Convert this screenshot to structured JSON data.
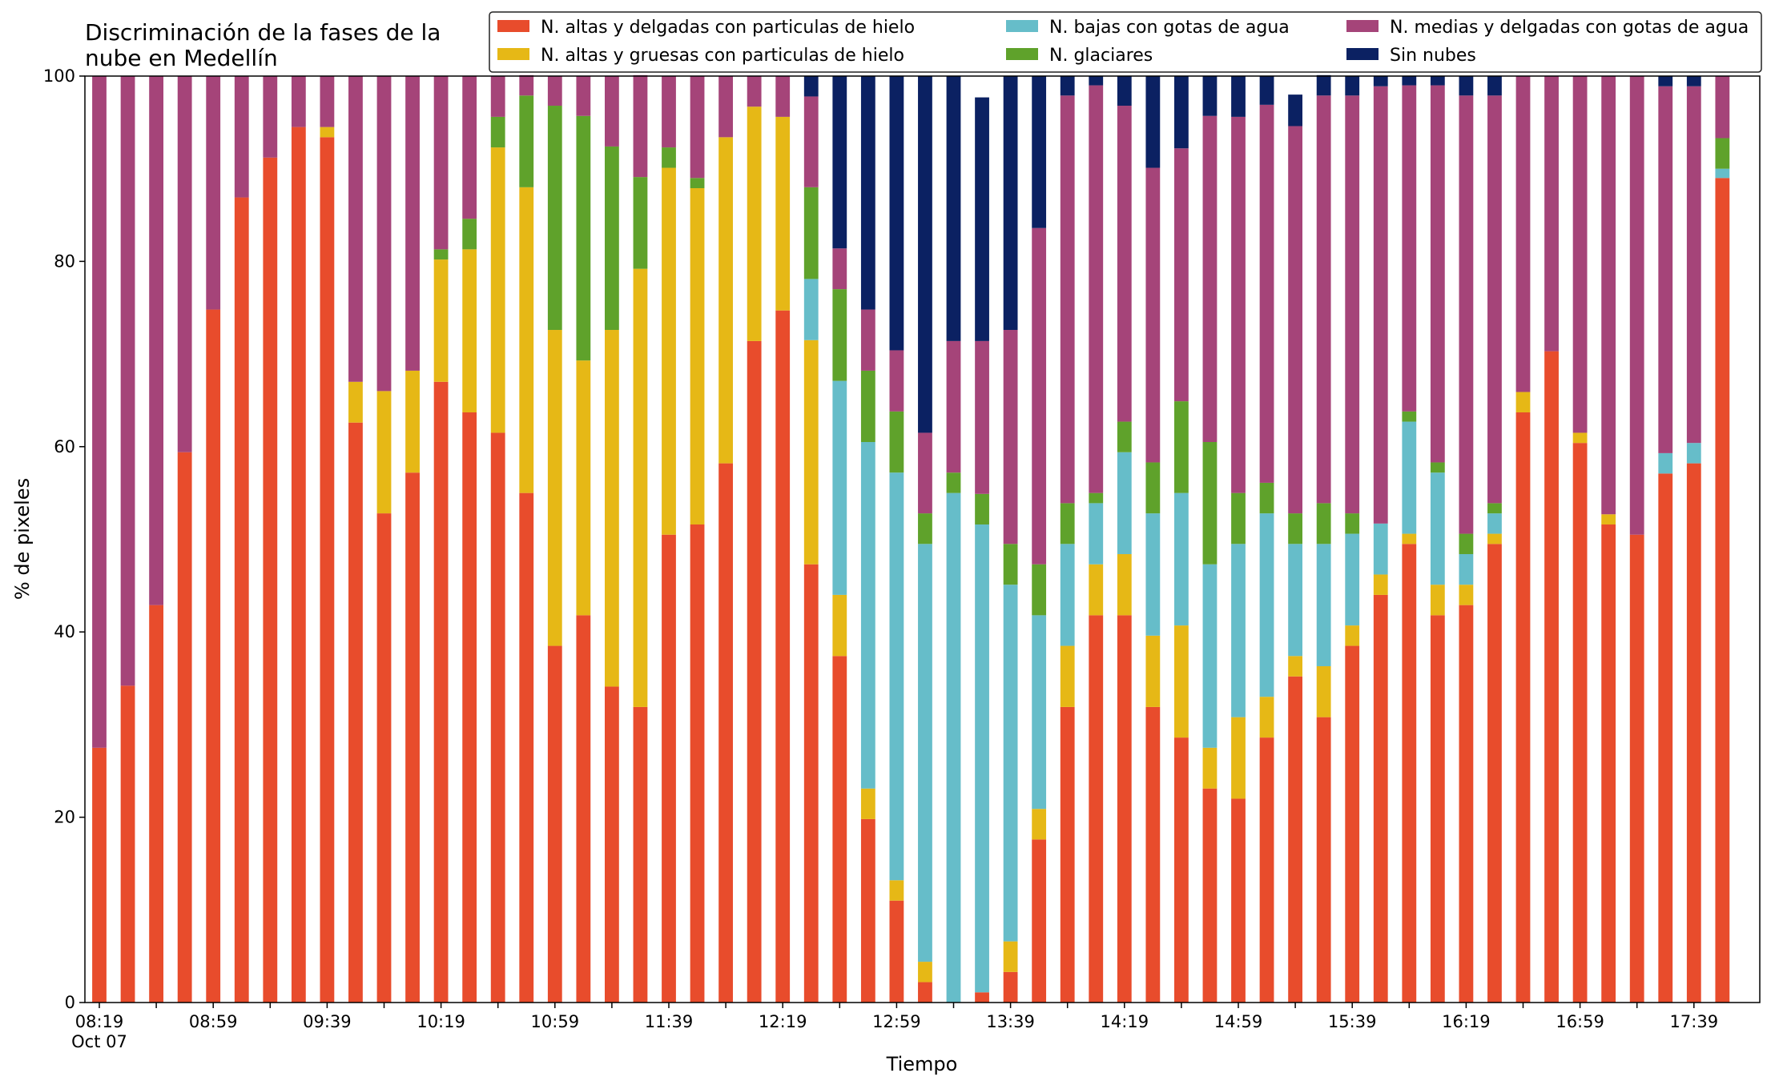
{
  "chart_data": {
    "type": "bar",
    "stacked": true,
    "title_lines": [
      "Discriminación de la fases de la",
      "nube en Medellín"
    ],
    "xlabel": "Tiempo",
    "ylabel": "% de pixeles",
    "ylim": [
      0,
      100
    ],
    "yticks": [
      "0",
      "20",
      "40",
      "60",
      "80",
      "100"
    ],
    "xtick_labels": [
      "08:19",
      "08:59",
      "09:39",
      "10:19",
      "10:59",
      "11:39",
      "12:19",
      "12:59",
      "13:39",
      "14:19",
      "14:59",
      "15:39",
      "16:19",
      "16:59",
      "17:39"
    ],
    "xtick_sublabel": "Oct 07",
    "grid": false,
    "legend_placement": "top-right",
    "categories": [
      "08:19",
      "08:29",
      "08:39",
      "08:49",
      "08:59",
      "09:09",
      "09:19",
      "09:29",
      "09:39",
      "09:49",
      "09:59",
      "10:09",
      "10:19",
      "10:29",
      "10:39",
      "10:49",
      "10:59",
      "11:09",
      "11:19",
      "11:29",
      "11:39",
      "11:49",
      "11:59",
      "12:09",
      "12:19",
      "12:29",
      "12:39",
      "12:49",
      "12:59",
      "13:09",
      "13:19",
      "13:29",
      "13:39",
      "13:49",
      "13:59",
      "14:09",
      "14:19",
      "14:29",
      "14:39",
      "14:49",
      "14:59",
      "15:09",
      "15:19",
      "15:29",
      "15:39",
      "15:49",
      "15:59",
      "16:09",
      "16:19",
      "16:29",
      "16:39",
      "16:49",
      "16:59",
      "17:09",
      "17:19",
      "17:29",
      "17:39",
      "17:49"
    ],
    "series": [
      {
        "name": "N. altas y delgadas con particulas de hielo",
        "color": "#e84c2c",
        "values": [
          27.5,
          34.2,
          42.9,
          59.4,
          74.8,
          86.9,
          91.2,
          94.5,
          93.4,
          62.6,
          52.8,
          57.2,
          67.0,
          63.7,
          61.5,
          55.0,
          38.5,
          41.8,
          34.1,
          31.9,
          50.5,
          51.6,
          58.2,
          71.4,
          74.7,
          47.3,
          37.4,
          19.8,
          11.0,
          2.2,
          0,
          1.1,
          3.3,
          17.6,
          31.9,
          41.8,
          41.8,
          31.9,
          28.6,
          23.1,
          22.0,
          28.6,
          35.2,
          30.8,
          38.5,
          44.0,
          49.5,
          41.8,
          42.9,
          49.5,
          63.7,
          70.3,
          60.4,
          51.6,
          50.5,
          57.1,
          58.2,
          89.0
        ]
      },
      {
        "name": "N. altas y gruesas con particulas de hielo",
        "color": "#e6b816",
        "values": [
          0,
          0,
          0,
          0,
          0,
          0,
          0,
          0,
          1.1,
          4.4,
          13.2,
          11.0,
          13.2,
          17.6,
          30.8,
          33.0,
          34.1,
          27.5,
          38.5,
          47.3,
          39.6,
          36.3,
          35.2,
          25.3,
          20.9,
          24.2,
          6.6,
          3.3,
          2.2,
          2.2,
          0,
          0,
          3.3,
          3.3,
          6.6,
          5.5,
          6.6,
          7.7,
          12.1,
          4.4,
          8.8,
          4.4,
          2.2,
          5.5,
          2.2,
          2.2,
          1.1,
          3.3,
          2.2,
          1.1,
          2.2,
          0,
          1.1,
          1.1,
          0,
          0,
          0,
          0
        ]
      },
      {
        "name": "N. bajas con gotas de agua",
        "color": "#66bdc9",
        "values": [
          0,
          0,
          0,
          0,
          0,
          0,
          0,
          0,
          0,
          0,
          0,
          0,
          0,
          0,
          0,
          0,
          0,
          0,
          0,
          0,
          0,
          0,
          0,
          0,
          0,
          6.6,
          23.1,
          37.4,
          44.0,
          45.1,
          55.0,
          50.5,
          38.5,
          20.9,
          11.0,
          6.6,
          11.0,
          13.2,
          14.3,
          19.8,
          18.7,
          19.8,
          12.1,
          13.2,
          9.9,
          5.5,
          12.1,
          12.1,
          3.3,
          2.2,
          0,
          0,
          0,
          0,
          0,
          2.2,
          2.2,
          1.0
        ]
      },
      {
        "name": "N. glaciares",
        "color": "#5fa22b",
        "values": [
          0,
          0,
          0,
          0,
          0,
          0,
          0,
          0,
          0,
          0,
          0,
          0,
          1.1,
          3.3,
          3.3,
          9.9,
          24.2,
          26.4,
          19.8,
          9.9,
          2.2,
          1.1,
          0,
          0,
          0,
          9.9,
          9.9,
          7.7,
          6.6,
          3.3,
          2.2,
          3.3,
          4.4,
          5.5,
          4.4,
          1.1,
          3.3,
          5.5,
          9.9,
          13.2,
          5.5,
          3.3,
          3.3,
          4.4,
          2.2,
          0,
          1.1,
          1.1,
          2.2,
          1.1,
          0,
          0,
          0,
          0,
          0,
          0,
          0,
          3.3
        ]
      },
      {
        "name": "N. medias y delgadas con gotas de agua",
        "color": "#a54479",
        "values": [
          72.5,
          65.8,
          57.1,
          40.6,
          25.2,
          13.1,
          8.8,
          5.5,
          5.5,
          33.0,
          34.0,
          31.8,
          18.7,
          15.4,
          4.4,
          2.2,
          3.2,
          4.3,
          7.6,
          11.0,
          7.7,
          11.0,
          6.6,
          3.3,
          4.4,
          9.8,
          4.4,
          6.6,
          6.6,
          8.7,
          14.2,
          16.5,
          23.1,
          36.3,
          44.0,
          44.0,
          34.1,
          31.8,
          27.3,
          35.2,
          40.6,
          40.8,
          41.8,
          44.0,
          45.1,
          47.2,
          35.2,
          40.7,
          47.3,
          44.0,
          34.1,
          29.7,
          38.5,
          47.3,
          49.5,
          39.6,
          38.5,
          6.7
        ]
      },
      {
        "name": "Sin nubes",
        "color": "#0b2162",
        "values": [
          0,
          0,
          0,
          0,
          0,
          0,
          0,
          0,
          0,
          0,
          0,
          0,
          0,
          0,
          0,
          0,
          0,
          0,
          0,
          0,
          0,
          0,
          0,
          0,
          0,
          2.2,
          18.6,
          25.2,
          29.6,
          38.5,
          28.6,
          26.3,
          27.4,
          16.4,
          2.1,
          1.0,
          3.2,
          9.9,
          7.8,
          4.3,
          4.4,
          3.1,
          3.4,
          2.2,
          2.1,
          1.1,
          1.0,
          1.0,
          2.1,
          2.1,
          0,
          0,
          0,
          0,
          0,
          1.1,
          1.1,
          0
        ]
      }
    ]
  }
}
